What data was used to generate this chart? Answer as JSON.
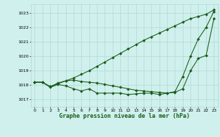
{
  "xlabel": "Graphe pression niveau de la mer (hPa)",
  "bg_color": "#cff0ec",
  "grid_color": "#aed8d3",
  "line_color": "#1a5c1a",
  "xlim": [
    -0.5,
    23.5
  ],
  "ylim": [
    1016.5,
    1023.6
  ],
  "yticks": [
    1017,
    1018,
    1019,
    1020,
    1021,
    1022,
    1023
  ],
  "xticks": [
    0,
    1,
    2,
    3,
    4,
    5,
    6,
    7,
    8,
    9,
    10,
    11,
    12,
    13,
    14,
    15,
    16,
    17,
    18,
    19,
    20,
    21,
    22,
    23
  ],
  "line1": [
    1018.2,
    1018.2,
    1017.9,
    1018.15,
    1018.3,
    1018.5,
    1018.75,
    1019.0,
    1019.3,
    1019.6,
    1019.9,
    1020.2,
    1020.5,
    1020.8,
    1021.1,
    1021.35,
    1021.6,
    1021.85,
    1022.1,
    1022.35,
    1022.6,
    1022.75,
    1022.9,
    1023.2
  ],
  "line2": [
    1018.2,
    1018.2,
    1017.9,
    1018.1,
    1018.3,
    1018.35,
    1018.25,
    1018.2,
    1018.15,
    1018.05,
    1017.95,
    1017.85,
    1017.75,
    1017.65,
    1017.6,
    1017.55,
    1017.5,
    1017.45,
    1017.5,
    1017.75,
    1019.0,
    1019.85,
    1020.05,
    1022.6
  ],
  "line3": [
    1018.2,
    1018.2,
    1017.85,
    1018.05,
    1017.95,
    1017.75,
    1017.6,
    1017.75,
    1017.45,
    1017.45,
    1017.45,
    1017.45,
    1017.35,
    1017.4,
    1017.45,
    1017.45,
    1017.35,
    1017.45,
    1017.55,
    1018.6,
    1020.0,
    1021.2,
    1022.0,
    1023.1
  ]
}
